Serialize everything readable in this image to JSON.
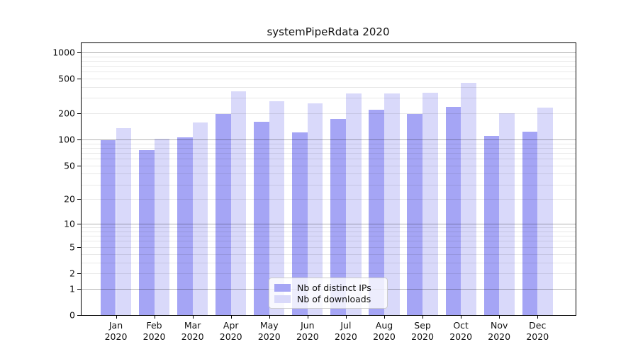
{
  "chart_data": {
    "type": "bar",
    "title": "systemPipeRdata 2020",
    "categories": [
      "Jan",
      "Feb",
      "Mar",
      "Apr",
      "May",
      "Jun",
      "Jul",
      "Aug",
      "Sep",
      "Oct",
      "Nov",
      "Dec"
    ],
    "year_label": "2020",
    "series": [
      {
        "name": "Nb of distinct IPs",
        "color": "#a5a5f5",
        "values": [
          99,
          76,
          105,
          196,
          161,
          121,
          173,
          218,
          197,
          236,
          111,
          123
        ]
      },
      {
        "name": "Nb of downloads",
        "color": "#d9d9fa",
        "values": [
          134,
          102,
          157,
          358,
          275,
          261,
          336,
          340,
          345,
          450,
          202,
          234
        ]
      }
    ],
    "yscale": "log1p",
    "y_ticks": [
      0,
      1,
      2,
      5,
      10,
      20,
      50,
      100,
      200,
      500,
      1000
    ],
    "y_major_gridlines": [
      1,
      10,
      100,
      1000
    ],
    "ylim": [
      0,
      1280
    ],
    "xlabel": "",
    "ylabel": "",
    "grid": true,
    "legend_position": "lower center"
  }
}
